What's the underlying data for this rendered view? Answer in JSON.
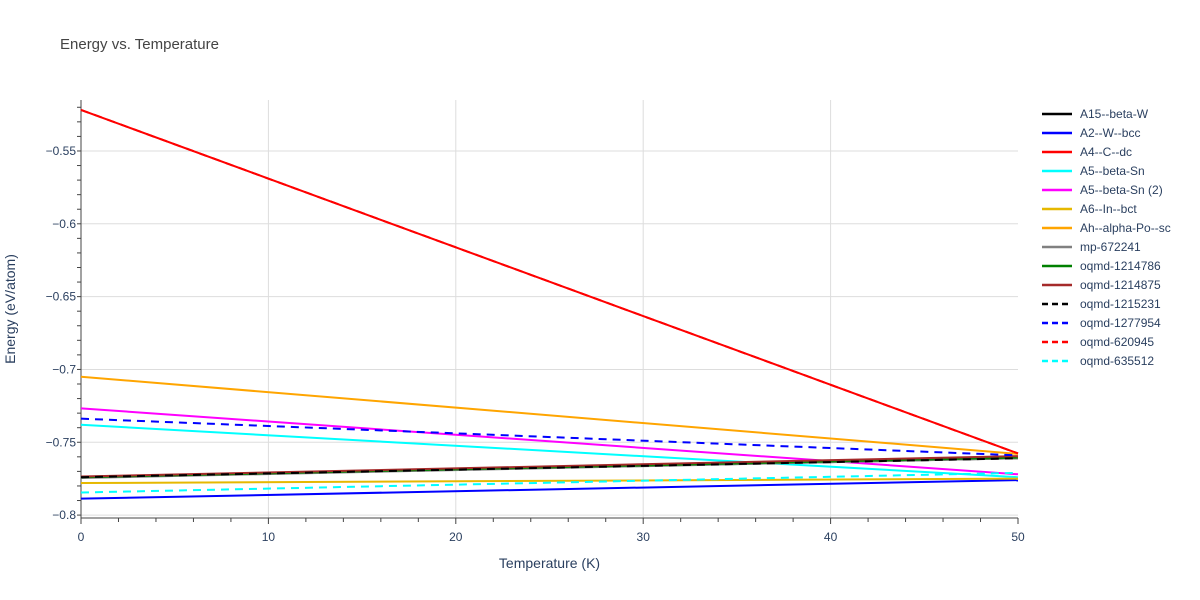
{
  "chart_data": {
    "type": "line",
    "title": "Energy vs. Temperature",
    "xlabel": "Temperature (K)",
    "ylabel": "Energy (eV/atom)",
    "xlim": [
      0,
      50
    ],
    "ylim": [
      -0.802,
      -0.515
    ],
    "xticks": [
      0,
      10,
      20,
      30,
      40,
      50
    ],
    "yticks": [
      -0.8,
      -0.75,
      -0.7,
      -0.65,
      -0.6,
      -0.55
    ],
    "ytick_labels": [
      "−0.8",
      "−0.75",
      "−0.7",
      "−0.65",
      "−0.6",
      "−0.55"
    ],
    "grid": true,
    "legend_position": "right",
    "series": [
      {
        "name": "A15--beta-W",
        "color": "#000000",
        "dash": false,
        "x": [
          0,
          50
        ],
        "y": [
          -0.774,
          -0.761
        ]
      },
      {
        "name": "A2--W--bcc",
        "color": "#0000ff",
        "dash": false,
        "x": [
          0,
          50
        ],
        "y": [
          -0.7887,
          -0.776
        ]
      },
      {
        "name": "A4--C--dc",
        "color": "#ff0000",
        "dash": false,
        "x": [
          0,
          50
        ],
        "y": [
          -0.5218,
          -0.7577
        ]
      },
      {
        "name": "A5--beta-Sn",
        "color": "#00ffff",
        "dash": false,
        "x": [
          0,
          50
        ],
        "y": [
          -0.738,
          -0.774
        ]
      },
      {
        "name": "A5--beta-Sn (2)",
        "color": "#ff00ff",
        "dash": false,
        "x": [
          0,
          50
        ],
        "y": [
          -0.7267,
          -0.772
        ]
      },
      {
        "name": "A6--In--bct",
        "color": "#e6b800",
        "dash": false,
        "x": [
          0,
          50
        ],
        "y": [
          -0.778,
          -0.775
        ]
      },
      {
        "name": "Ah--alpha-Po--sc",
        "color": "#ffa500",
        "dash": false,
        "x": [
          0,
          50
        ],
        "y": [
          -0.705,
          -0.758
        ]
      },
      {
        "name": "mp-672241",
        "color": "#808080",
        "dash": false,
        "x": [
          0,
          50
        ],
        "y": [
          -0.7745,
          -0.761
        ]
      },
      {
        "name": "oqmd-1214786",
        "color": "#008000",
        "dash": false,
        "x": [
          0,
          37,
          50
        ],
        "y": [
          -0.774,
          -0.764,
          -0.7605
        ]
      },
      {
        "name": "oqmd-1214875",
        "color": "#a52a2a",
        "dash": false,
        "x": [
          0,
          50
        ],
        "y": [
          -0.7735,
          -0.7595
        ]
      },
      {
        "name": "oqmd-1215231",
        "color": "#000000",
        "dash": true,
        "x": [
          0,
          50
        ],
        "y": [
          -0.774,
          -0.761
        ]
      },
      {
        "name": "oqmd-1277954",
        "color": "#0000ff",
        "dash": true,
        "x": [
          0,
          50
        ],
        "y": [
          -0.7338,
          -0.759
        ]
      },
      {
        "name": "oqmd-620945",
        "color": "#ff0000",
        "dash": true,
        "x": [
          0,
          50
        ],
        "y": [
          -0.5218,
          -0.7577
        ]
      },
      {
        "name": "oqmd-635512",
        "color": "#00ffff",
        "dash": true,
        "x": [
          0,
          50
        ],
        "y": [
          -0.7845,
          -0.771
        ]
      }
    ]
  }
}
